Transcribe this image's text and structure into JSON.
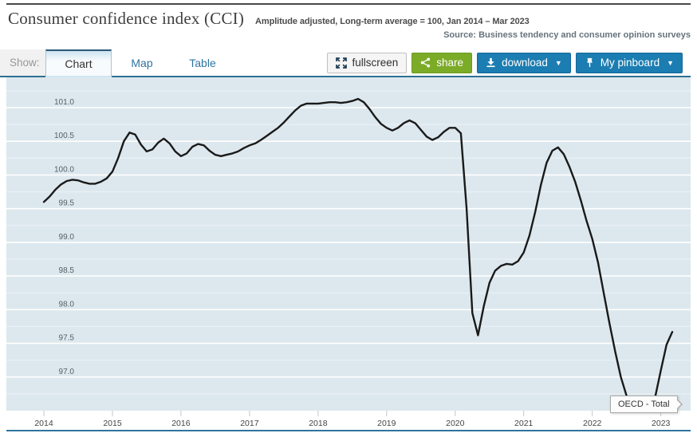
{
  "header": {
    "title": "Consumer confidence index (CCI)",
    "subtitle": "Amplitude adjusted, Long-term average = 100, Jan 2014 – Mar 2023",
    "source": "Source: Business tendency and consumer opinion surveys"
  },
  "toolbar": {
    "show_label": "Show:",
    "tabs": [
      {
        "label": "Chart",
        "active": true
      },
      {
        "label": "Map",
        "active": false
      },
      {
        "label": "Table",
        "active": false
      }
    ],
    "buttons": {
      "fullscreen": "fullscreen",
      "share": "share",
      "download": "download",
      "download_caret": "▼",
      "pinboard": "My pinboard",
      "pinboard_caret": "▼"
    }
  },
  "chart": {
    "series_label": "OECD - Total"
  },
  "colors": {
    "plot_background": "#dde8ee",
    "gridline": "#ffffff",
    "line": "#1a1a1a",
    "accent_blue": "#1b7db1",
    "accent_green": "#7cab28",
    "tab_border_blue": "#2f7094",
    "bottom_rule_blue": "#2e74a0"
  },
  "chart_data": {
    "type": "line",
    "title": "Consumer confidence index (CCI)",
    "subtitle": "Amplitude adjusted, Long-term average = 100",
    "frequency": "monthly",
    "x_start": "2014-01",
    "x_end": "2023-03",
    "x_tick_labels": [
      "2014",
      "2015",
      "2016",
      "2017",
      "2018",
      "2019",
      "2020",
      "2021",
      "2022",
      "2023"
    ],
    "y_ticks": [
      97.0,
      97.5,
      98.0,
      98.5,
      99.0,
      99.5,
      100.0,
      100.5,
      101.0
    ],
    "ylim": [
      96.5,
      101.45
    ],
    "grid": "major 0.5 white, minor 0.25 faint white",
    "legend_position": "inline-label-at-line-end",
    "series": [
      {
        "name": "OECD - Total",
        "values": [
          99.6,
          99.68,
          99.78,
          99.86,
          99.91,
          99.93,
          99.92,
          99.89,
          99.87,
          99.87,
          99.9,
          99.95,
          100.05,
          100.25,
          100.5,
          100.63,
          100.6,
          100.45,
          100.35,
          100.38,
          100.48,
          100.54,
          100.47,
          100.35,
          100.28,
          100.32,
          100.42,
          100.46,
          100.44,
          100.36,
          100.3,
          100.28,
          100.3,
          100.32,
          100.35,
          100.4,
          100.44,
          100.47,
          100.52,
          100.58,
          100.64,
          100.7,
          100.78,
          100.87,
          100.96,
          101.03,
          101.06,
          101.06,
          101.06,
          101.07,
          101.08,
          101.08,
          101.07,
          101.08,
          101.1,
          101.13,
          101.08,
          100.98,
          100.86,
          100.76,
          100.7,
          100.66,
          100.7,
          100.77,
          100.81,
          100.77,
          100.67,
          100.57,
          100.52,
          100.56,
          100.64,
          100.7,
          100.7,
          100.62,
          99.5,
          97.95,
          97.62,
          98.05,
          98.4,
          98.58,
          98.65,
          98.68,
          98.67,
          98.72,
          98.85,
          99.1,
          99.45,
          99.85,
          100.18,
          100.36,
          100.41,
          100.31,
          100.12,
          99.9,
          99.62,
          99.32,
          99.05,
          98.7,
          98.25,
          97.8,
          97.38,
          97.0,
          96.72,
          96.58,
          96.54,
          96.53,
          96.56,
          96.7,
          97.1,
          97.48,
          97.67
        ]
      }
    ]
  }
}
